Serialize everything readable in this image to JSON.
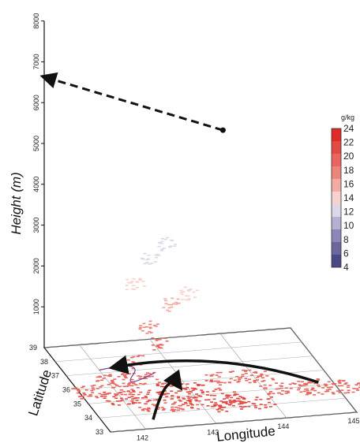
{
  "chart_data": {
    "type": "scatter",
    "projection": "3d",
    "title": "",
    "z_axis": {
      "label": "Height (m)",
      "range": [
        0,
        8000
      ],
      "ticks": [
        1000,
        2000,
        3000,
        4000,
        5000,
        6000,
        7000,
        8000
      ]
    },
    "x_axis": {
      "label": "Longitude",
      "range": [
        141.5,
        145
      ],
      "ticks": [
        142,
        143,
        144,
        145
      ]
    },
    "y_axis": {
      "label": "Latitude",
      "range": [
        33,
        39
      ],
      "ticks": [
        33,
        34,
        35,
        36,
        37,
        38,
        39
      ]
    },
    "colorbar": {
      "unit": "g/kg",
      "min": 4,
      "max": 24,
      "ticks": [
        24,
        22,
        20,
        18,
        16,
        14,
        12,
        10,
        8,
        6,
        4
      ],
      "colors": [
        "#de2d26",
        "#e34a44",
        "#e8665f",
        "#ee857d",
        "#f4aba3",
        "#f8d2cd",
        "#dcd8e8",
        "#b5b1d1",
        "#8c87b8",
        "#6b669d",
        "#4b4887"
      ]
    },
    "annotations": [
      {
        "type": "dashed-arrow",
        "from": [
          143.6,
          36.2,
          6000
        ],
        "to": [
          141.2,
          37.2,
          7300
        ]
      },
      {
        "type": "curved-arrow",
        "from": [
          144.8,
          35.2,
          0
        ],
        "to": [
          142.2,
          37.3,
          0
        ]
      },
      {
        "type": "curved-arrow",
        "from": [
          142.2,
          33.6,
          0
        ],
        "to": [
          142.9,
          35.6,
          0
        ]
      }
    ],
    "series": [
      {
        "x": [
          143.0,
          142.2,
          142.6,
          143.6,
          144.4,
          143.8,
          142.3,
          143.2,
          144.9,
          141.9
        ],
        "y": [
          35.5,
          35.2,
          34.5,
          34.2,
          35.0,
          36.0,
          36.4,
          34.6,
          34.8,
          35.8
        ],
        "z": [
          0,
          0,
          0,
          0,
          0,
          0,
          0,
          0,
          0,
          0
        ],
        "value": [
          22,
          22,
          21,
          22,
          21,
          21,
          20,
          22,
          20,
          21
        ]
      },
      {
        "x": [
          142.4,
          142.7,
          142.5,
          142.9,
          143.1,
          142.3,
          142.6,
          142.8
        ],
        "y": [
          36.5,
          36.2,
          36.0,
          36.3,
          36.1,
          35.9,
          36.4,
          36.2
        ],
        "z": [
          400,
          900,
          1400,
          1800,
          2100,
          2500,
          2900,
          3300
        ],
        "value": [
          21,
          20,
          18,
          16,
          15,
          14,
          13,
          12
        ]
      }
    ]
  }
}
